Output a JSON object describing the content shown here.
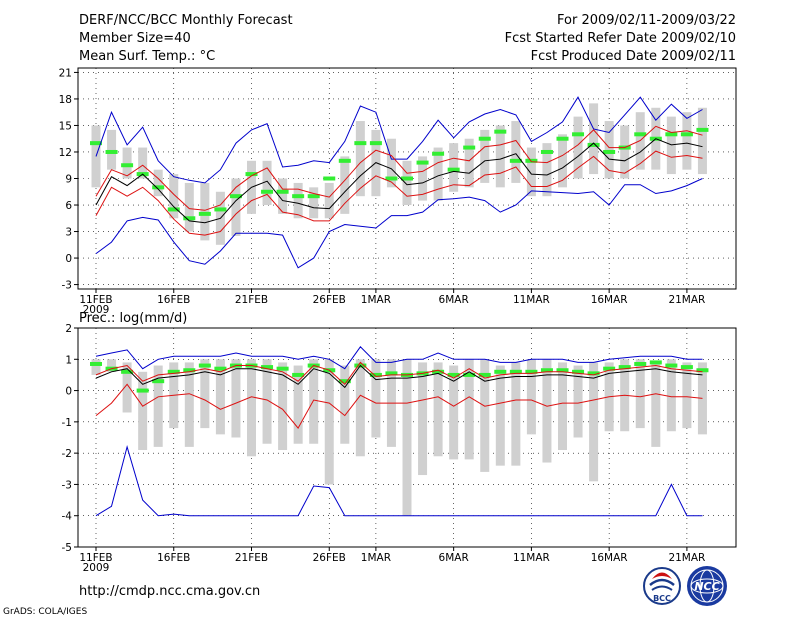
{
  "header": {
    "left_title": "DERF/NCC/BCC Monthly Forecast",
    "member_size": "Member Size=40",
    "variable": "Mean Surf. Temp.: °C",
    "right_title": "For 2009/02/11-2009/03/22",
    "started": "Fcst Started Refer Date 2009/02/10",
    "produced": "Fcst Produced Date 2009/02/11"
  },
  "footer": {
    "url": "http://cmdp.ncc.cma.gov.cn",
    "grads": "GrADS: COLA/IGES",
    "logo_bcc_text": "BCC",
    "logo_ncc_text": "NCC"
  },
  "colors": {
    "box": "#d0d0d0",
    "clim": "#33ee33",
    "envelope": "#0000cc",
    "spread": "#dd1111",
    "mean": "#000000"
  },
  "chart_data": [
    {
      "type": "box-ensemble",
      "title": "Mean Surf. Temp.: °C",
      "ylim": [
        -3.5,
        21.5
      ],
      "yticks": [
        21,
        18,
        15,
        12,
        9,
        6,
        3,
        0,
        -3
      ],
      "xticks": [
        {
          "day": 0,
          "label": "11FEB"
        },
        {
          "day": 5,
          "label": "16FEB"
        },
        {
          "day": 10,
          "label": "21FEB"
        },
        {
          "day": 15,
          "label": "26FEB"
        },
        {
          "day": 18,
          "label": "1MAR"
        },
        {
          "day": 23,
          "label": "6MAR"
        },
        {
          "day": 28,
          "label": "11MAR"
        },
        {
          "day": 33,
          "label": "16MAR"
        },
        {
          "day": 38,
          "label": "21MAR"
        }
      ],
      "year_label": "2009",
      "box_low": [
        8,
        10,
        9,
        9,
        7,
        4.5,
        3,
        2,
        1.5,
        2.5,
        5,
        6,
        5,
        4.5,
        4.5,
        4.5,
        5,
        7,
        7,
        8,
        6,
        6.5,
        6.5,
        7.5,
        8,
        8.5,
        8,
        8.5,
        7,
        7,
        8,
        9,
        9.5,
        9,
        9,
        10,
        10,
        9.5,
        10,
        9.5
      ],
      "box_high": [
        15,
        14.5,
        12.5,
        12.5,
        10,
        9.5,
        8.5,
        8.5,
        7.5,
        9,
        11,
        11,
        9,
        8.5,
        8,
        8.5,
        11.5,
        15.5,
        14.5,
        13.5,
        11,
        11.5,
        12.5,
        13,
        13.5,
        14.5,
        15,
        15.5,
        12.5,
        13,
        14,
        16,
        17.5,
        15.5,
        15,
        16.5,
        17,
        16,
        16.5,
        17
      ],
      "clim": [
        13,
        12,
        10.5,
        9.5,
        8,
        5.5,
        4.5,
        5,
        5.5,
        7,
        9.5,
        7.5,
        7.5,
        7,
        7,
        9,
        11,
        13,
        13,
        9,
        9,
        10.8,
        11.8,
        10,
        12.5,
        13.5,
        14.3,
        11,
        11,
        12,
        13.5,
        14,
        12.8,
        12,
        12.5,
        14,
        13.5,
        14,
        14,
        14.5
      ],
      "mean": [
        6,
        9.2,
        8.2,
        9.5,
        7.8,
        5.8,
        4.2,
        4,
        4.5,
        6.5,
        8,
        8.7,
        6.5,
        6.2,
        5.7,
        5.6,
        7.5,
        9.3,
        10.8,
        10.1,
        8.3,
        8.5,
        9.3,
        9.8,
        9.6,
        11,
        11.2,
        11.8,
        9.5,
        9.4,
        10.2,
        11.5,
        13,
        11.2,
        11,
        12,
        13.5,
        12.8,
        13,
        12.6
      ],
      "spread_high": [
        7,
        10,
        9.3,
        10.5,
        9,
        7.2,
        5.6,
        5.4,
        6,
        8,
        9.3,
        10.2,
        7.8,
        7.8,
        7.3,
        6.9,
        8.8,
        10.8,
        12.2,
        11.6,
        9.6,
        9.8,
        10.8,
        11.3,
        11,
        12.6,
        12.8,
        13.3,
        10.9,
        10.8,
        11.6,
        12.8,
        14.5,
        12.5,
        12.5,
        13.3,
        14.9,
        14.2,
        14.4,
        13.9
      ],
      "spread_low": [
        4.8,
        8,
        7,
        8,
        6.5,
        4.4,
        2.8,
        2.6,
        3,
        5,
        6.5,
        7.2,
        5.2,
        4.9,
        4.2,
        4.2,
        6.2,
        7.9,
        9.3,
        8.6,
        7,
        7.2,
        7.8,
        8.3,
        8.2,
        9.4,
        9.6,
        10.3,
        8.1,
        8.1,
        8.8,
        10.2,
        11.5,
        9.9,
        9.6,
        10.7,
        12.1,
        11.4,
        11.6,
        11.3
      ],
      "env_high": [
        11.5,
        16.5,
        12.8,
        14.8,
        11,
        9.2,
        8.8,
        8.5,
        10,
        13,
        14.5,
        15.2,
        10.3,
        10.5,
        11,
        10.8,
        13.2,
        17.2,
        16.5,
        11.2,
        11.2,
        13.2,
        15.6,
        13.6,
        15.4,
        16.3,
        16.8,
        16.2,
        13.2,
        14.2,
        15.4,
        18.2,
        14.6,
        14.2,
        16.2,
        18.2,
        15.6,
        17.4,
        15.8,
        16.8
      ],
      "env_low": [
        0.5,
        1.8,
        4.2,
        4.6,
        4.3,
        1.8,
        -0.3,
        -0.7,
        0.8,
        2.8,
        2.8,
        2.8,
        2.6,
        -1.1,
        0,
        3,
        3.8,
        3.6,
        3.4,
        4.8,
        4.8,
        5.2,
        6.6,
        6.7,
        6.9,
        6.5,
        5.2,
        6,
        7.6,
        7.5,
        7.4,
        7.3,
        7.5,
        6,
        8.3,
        8.3,
        7.3,
        7.6,
        8.2,
        9
      ]
    },
    {
      "type": "box-ensemble",
      "title": "Prec.: log(mm/d)",
      "ylim": [
        -5,
        2
      ],
      "yticks": [
        2,
        1,
        0,
        -1,
        -2,
        -3,
        -4,
        -5
      ],
      "xticks": [
        {
          "day": 0,
          "label": "11FEB"
        },
        {
          "day": 5,
          "label": "16FEB"
        },
        {
          "day": 10,
          "label": "21FEB"
        },
        {
          "day": 15,
          "label": "26FEB"
        },
        {
          "day": 18,
          "label": "1MAR"
        },
        {
          "day": 23,
          "label": "6MAR"
        },
        {
          "day": 28,
          "label": "11MAR"
        },
        {
          "day": 33,
          "label": "16MAR"
        },
        {
          "day": 38,
          "label": "21MAR"
        }
      ],
      "year_label": "2009",
      "box_low": [
        0.5,
        0.6,
        -0.7,
        -1.9,
        -1.8,
        -1.2,
        -1.8,
        -1.2,
        -1.4,
        -1.5,
        -2.1,
        -1.7,
        -1.9,
        -1.7,
        -1.7,
        -3.0,
        -1.7,
        -2.1,
        -1.5,
        -1.8,
        -4.0,
        -2.7,
        -2.1,
        -2.2,
        -2.2,
        -2.6,
        -2.4,
        -2.4,
        -1.4,
        -2.3,
        -1.9,
        -1.5,
        -2.9,
        -1.3,
        -1.3,
        -1.2,
        -1.8,
        -1.3,
        -1.2,
        -1.4
      ],
      "box_high": [
        1.0,
        1.0,
        0.9,
        0.6,
        0.8,
        0.9,
        0.9,
        1.0,
        1.0,
        1.0,
        1.0,
        1.0,
        0.9,
        0.8,
        1.0,
        1.0,
        0.8,
        1.0,
        1.0,
        1.0,
        1.0,
        0.9,
        0.9,
        0.8,
        1.0,
        1.0,
        0.8,
        0.9,
        1.0,
        1.0,
        0.9,
        0.8,
        0.9,
        0.9,
        1.0,
        1.0,
        0.9,
        1.0,
        0.9,
        0.9
      ],
      "clim": [
        0.85,
        0.7,
        0.6,
        0.0,
        0.3,
        0.6,
        0.65,
        0.8,
        0.7,
        0.8,
        0.8,
        0.75,
        0.7,
        0.5,
        0.8,
        0.65,
        0.3,
        0.8,
        0.5,
        0.55,
        0.5,
        0.55,
        0.6,
        0.5,
        0.5,
        0.5,
        0.6,
        0.6,
        0.6,
        0.65,
        0.65,
        0.6,
        0.55,
        0.7,
        0.75,
        0.85,
        0.9,
        0.8,
        0.75,
        0.65
      ],
      "mean": [
        0.4,
        0.6,
        0.7,
        0.2,
        0.4,
        0.45,
        0.5,
        0.6,
        0.5,
        0.7,
        0.7,
        0.6,
        0.5,
        0.2,
        0.7,
        0.55,
        0.1,
        0.8,
        0.35,
        0.4,
        0.4,
        0.45,
        0.55,
        0.3,
        0.6,
        0.3,
        0.4,
        0.45,
        0.45,
        0.5,
        0.5,
        0.45,
        0.4,
        0.55,
        0.6,
        0.65,
        0.7,
        0.6,
        0.55,
        0.5
      ],
      "spread_high": [
        0.5,
        0.7,
        0.8,
        0.3,
        0.5,
        0.55,
        0.6,
        0.7,
        0.6,
        0.8,
        0.8,
        0.7,
        0.6,
        0.3,
        0.8,
        0.65,
        0.2,
        0.9,
        0.45,
        0.5,
        0.5,
        0.55,
        0.65,
        0.4,
        0.7,
        0.4,
        0.5,
        0.55,
        0.55,
        0.6,
        0.6,
        0.55,
        0.5,
        0.65,
        0.7,
        0.75,
        0.8,
        0.7,
        0.65,
        0.6
      ],
      "spread_low": [
        -0.8,
        -0.4,
        0.2,
        -0.5,
        -0.2,
        -0.15,
        -0.1,
        -0.3,
        -0.6,
        -0.4,
        -0.2,
        -0.3,
        -0.6,
        -1.2,
        -0.3,
        -0.4,
        -0.8,
        -0.15,
        -0.4,
        -0.4,
        -0.4,
        -0.3,
        -0.2,
        -0.5,
        -0.2,
        -0.5,
        -0.4,
        -0.3,
        -0.3,
        -0.5,
        -0.4,
        -0.4,
        -0.3,
        -0.2,
        -0.15,
        -0.2,
        -0.1,
        -0.2,
        -0.2,
        -0.25
      ],
      "env_high": [
        1.1,
        1.2,
        1.3,
        0.7,
        1.0,
        1.1,
        1.1,
        1.1,
        1.1,
        1.2,
        1.1,
        1.1,
        1.1,
        1.0,
        1.1,
        1.0,
        0.7,
        1.4,
        0.9,
        0.9,
        1.0,
        1.0,
        1.2,
        1.0,
        1.0,
        1.0,
        0.9,
        0.9,
        1.0,
        1.0,
        1.0,
        0.9,
        0.9,
        1.0,
        1.05,
        1.1,
        1.1,
        1.1,
        1.0,
        1.0
      ],
      "env_low": [
        -4.0,
        -3.7,
        -1.8,
        -3.5,
        -4.0,
        -3.95,
        -4.0,
        -4.0,
        -4.0,
        -4.0,
        -4.0,
        -4.0,
        -4.0,
        -4.0,
        -3.05,
        -3.1,
        -4.0,
        -4.0,
        -4.0,
        -4.0,
        -4.0,
        -4.0,
        -4.0,
        -4.0,
        -4.0,
        -4.0,
        -4.0,
        -4.0,
        -4.0,
        -4.0,
        -4.0,
        -4.0,
        -4.0,
        -4.0,
        -4.0,
        -4.0,
        -4.0,
        -3.0,
        -4.0,
        -4.0
      ]
    }
  ]
}
